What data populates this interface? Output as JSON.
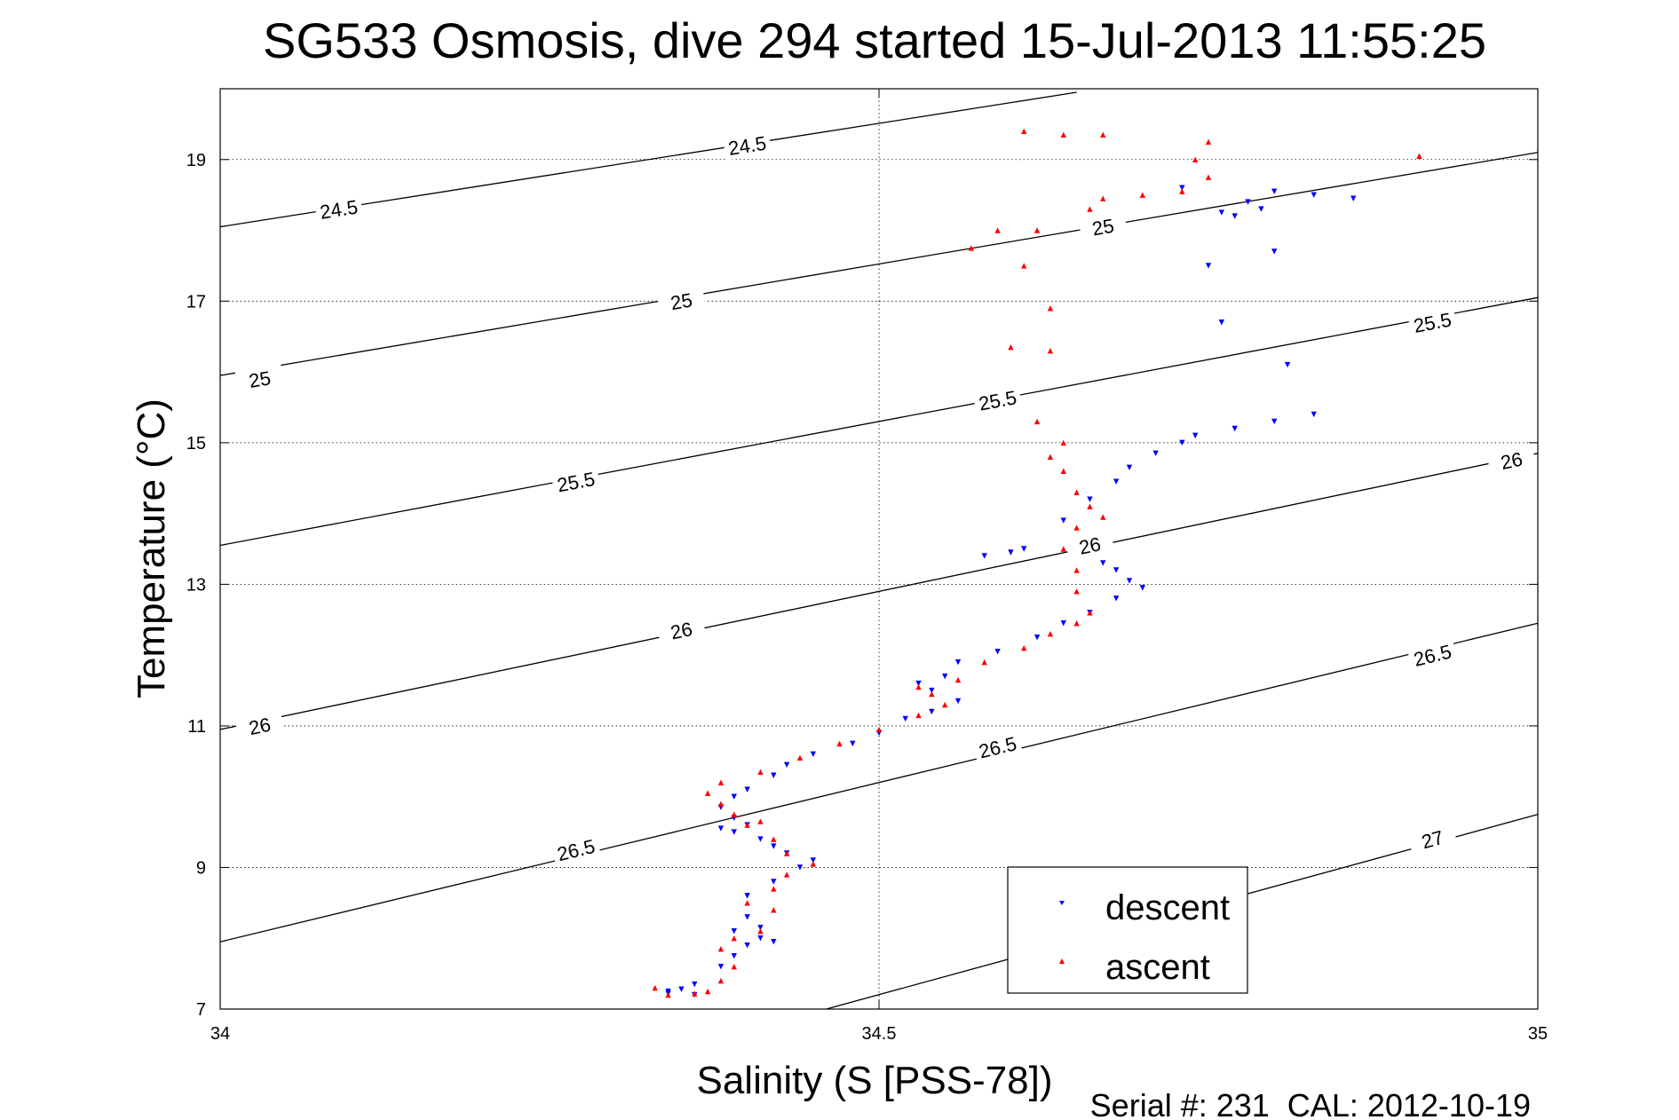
{
  "chart_data": {
    "type": "scatter",
    "title": "SG533 Osmosis, dive 294 started 15-Jul-2013 11:55:25",
    "xlabel": "Salinity (S [PSS-78])",
    "ylabel": "Temperature (°C)",
    "footer": "Serial #: 231  CAL: 2012-10-19",
    "xlim": [
      34,
      35
    ],
    "ylim": [
      7,
      20
    ],
    "xticks": [
      34,
      34.5,
      35
    ],
    "xtick_labels": [
      "34",
      "34.5",
      "35"
    ],
    "yticks": [
      7,
      9,
      11,
      13,
      15,
      17,
      19
    ],
    "ytick_labels": [
      "7",
      "9",
      "11",
      "13",
      "15",
      "17",
      "19"
    ],
    "grid": true,
    "legend": {
      "position": "bottom-right",
      "entries": [
        "descent",
        "ascent"
      ]
    },
    "colors": {
      "descent": "#0000ff",
      "ascent": "#ff0000",
      "contour": "#000000"
    },
    "contours": [
      {
        "label": "24.5",
        "points": [
          [
            34,
            18.05
          ],
          [
            34.65,
            19.95
          ]
        ],
        "labels_at": [
          [
            34.09,
            18.3
          ],
          [
            34.4,
            19.2
          ]
        ]
      },
      {
        "label": "25",
        "points": [
          [
            34,
            15.95
          ],
          [
            35,
            19.1
          ]
        ],
        "labels_at": [
          [
            34.03,
            15.9
          ],
          [
            34.35,
            17.0
          ],
          [
            34.67,
            18.05
          ]
        ]
      },
      {
        "label": "25.5",
        "points": [
          [
            34,
            13.55
          ],
          [
            35,
            17.05
          ]
        ],
        "labels_at": [
          [
            34.27,
            14.45
          ],
          [
            34.59,
            15.6
          ],
          [
            34.92,
            16.7
          ]
        ]
      },
      {
        "label": "26",
        "points": [
          [
            34,
            10.95
          ],
          [
            35,
            14.85
          ]
        ],
        "labels_at": [
          [
            34.03,
            11.0
          ],
          [
            34.35,
            12.35
          ],
          [
            34.66,
            13.55
          ],
          [
            34.98,
            14.75
          ]
        ]
      },
      {
        "label": "26.5",
        "points": [
          [
            34,
            7.95
          ],
          [
            35,
            12.45
          ]
        ],
        "labels_at": [
          [
            34.27,
            9.25
          ],
          [
            34.59,
            10.7
          ],
          [
            34.92,
            12.0
          ]
        ]
      },
      {
        "label": "27",
        "points": [
          [
            34.46,
            7.0
          ],
          [
            35,
            9.75
          ]
        ],
        "labels_at": [
          [
            34.92,
            9.4
          ]
        ]
      }
    ],
    "series": [
      {
        "name": "descent",
        "marker": "triangle-down",
        "points": [
          [
            34.34,
            7.25
          ],
          [
            34.35,
            7.28
          ],
          [
            34.36,
            7.35
          ],
          [
            34.34,
            7.22
          ],
          [
            34.36,
            7.2
          ],
          [
            34.38,
            7.6
          ],
          [
            34.39,
            7.75
          ],
          [
            34.4,
            7.9
          ],
          [
            34.42,
            7.95
          ],
          [
            34.41,
            8.0
          ],
          [
            34.39,
            8.1
          ],
          [
            34.41,
            8.15
          ],
          [
            34.4,
            8.3
          ],
          [
            34.4,
            8.6
          ],
          [
            34.42,
            8.8
          ],
          [
            34.44,
            9.0
          ],
          [
            34.45,
            9.1
          ],
          [
            34.43,
            9.2
          ],
          [
            34.42,
            9.3
          ],
          [
            34.41,
            9.4
          ],
          [
            34.39,
            9.5
          ],
          [
            34.38,
            9.55
          ],
          [
            34.4,
            9.6
          ],
          [
            34.39,
            9.7
          ],
          [
            34.38,
            9.85
          ],
          [
            34.39,
            10.0
          ],
          [
            34.4,
            10.1
          ],
          [
            34.42,
            10.3
          ],
          [
            34.43,
            10.45
          ],
          [
            34.45,
            10.6
          ],
          [
            34.48,
            10.75
          ],
          [
            34.5,
            10.9
          ],
          [
            34.52,
            11.1
          ],
          [
            34.54,
            11.2
          ],
          [
            34.56,
            11.35
          ],
          [
            34.54,
            11.5
          ],
          [
            34.53,
            11.6
          ],
          [
            34.55,
            11.7
          ],
          [
            34.56,
            11.9
          ],
          [
            34.59,
            12.05
          ],
          [
            34.62,
            12.25
          ],
          [
            34.64,
            12.45
          ],
          [
            34.66,
            12.6
          ],
          [
            34.68,
            12.8
          ],
          [
            34.7,
            12.95
          ],
          [
            34.69,
            13.05
          ],
          [
            34.68,
            13.2
          ],
          [
            34.67,
            13.3
          ],
          [
            34.6,
            13.45
          ],
          [
            34.58,
            13.4
          ],
          [
            34.61,
            13.5
          ],
          [
            34.64,
            13.9
          ],
          [
            34.66,
            14.2
          ],
          [
            34.68,
            14.45
          ],
          [
            34.69,
            14.65
          ],
          [
            34.71,
            14.85
          ],
          [
            34.73,
            15.0
          ],
          [
            34.74,
            15.1
          ],
          [
            34.77,
            15.2
          ],
          [
            34.8,
            15.3
          ],
          [
            34.83,
            15.4
          ],
          [
            34.81,
            16.1
          ],
          [
            34.76,
            16.7
          ],
          [
            34.8,
            17.7
          ],
          [
            34.75,
            17.5
          ],
          [
            34.77,
            18.2
          ],
          [
            34.78,
            18.4
          ],
          [
            34.8,
            18.55
          ],
          [
            34.83,
            18.5
          ],
          [
            34.86,
            18.45
          ],
          [
            34.79,
            18.3
          ],
          [
            34.76,
            18.25
          ],
          [
            34.73,
            18.6
          ]
        ]
      },
      {
        "name": "ascent",
        "marker": "triangle-up",
        "points": [
          [
            34.33,
            7.3
          ],
          [
            34.34,
            7.2
          ],
          [
            34.36,
            7.22
          ],
          [
            34.37,
            7.25
          ],
          [
            34.38,
            7.4
          ],
          [
            34.39,
            7.6
          ],
          [
            34.38,
            7.85
          ],
          [
            34.39,
            8.0
          ],
          [
            34.41,
            8.1
          ],
          [
            34.42,
            8.4
          ],
          [
            34.4,
            8.5
          ],
          [
            34.42,
            8.7
          ],
          [
            34.43,
            8.9
          ],
          [
            34.45,
            9.05
          ],
          [
            34.43,
            9.2
          ],
          [
            34.42,
            9.4
          ],
          [
            34.4,
            9.6
          ],
          [
            34.41,
            9.65
          ],
          [
            34.39,
            9.75
          ],
          [
            34.38,
            9.9
          ],
          [
            34.37,
            10.05
          ],
          [
            34.38,
            10.2
          ],
          [
            34.41,
            10.35
          ],
          [
            34.44,
            10.55
          ],
          [
            34.47,
            10.75
          ],
          [
            34.5,
            10.95
          ],
          [
            34.53,
            11.15
          ],
          [
            34.55,
            11.3
          ],
          [
            34.54,
            11.45
          ],
          [
            34.53,
            11.55
          ],
          [
            34.56,
            11.65
          ],
          [
            34.58,
            11.9
          ],
          [
            34.61,
            12.1
          ],
          [
            34.63,
            12.3
          ],
          [
            34.65,
            12.45
          ],
          [
            34.66,
            12.6
          ],
          [
            34.65,
            12.9
          ],
          [
            34.65,
            13.2
          ],
          [
            34.64,
            13.5
          ],
          [
            34.65,
            13.8
          ],
          [
            34.67,
            13.95
          ],
          [
            34.66,
            14.1
          ],
          [
            34.65,
            14.3
          ],
          [
            34.64,
            14.6
          ],
          [
            34.63,
            14.8
          ],
          [
            34.64,
            15.0
          ],
          [
            34.62,
            15.3
          ],
          [
            34.63,
            16.3
          ],
          [
            34.6,
            16.35
          ],
          [
            34.63,
            16.9
          ],
          [
            34.61,
            17.5
          ],
          [
            34.57,
            17.75
          ],
          [
            34.59,
            18.0
          ],
          [
            34.62,
            18.0
          ],
          [
            34.66,
            18.3
          ],
          [
            34.67,
            18.45
          ],
          [
            34.7,
            18.5
          ],
          [
            34.73,
            18.55
          ],
          [
            34.75,
            18.75
          ],
          [
            34.75,
            19.25
          ],
          [
            34.64,
            19.35
          ],
          [
            34.67,
            19.35
          ],
          [
            34.61,
            19.4
          ],
          [
            34.74,
            19.0
          ],
          [
            34.91,
            19.05
          ]
        ]
      }
    ]
  }
}
